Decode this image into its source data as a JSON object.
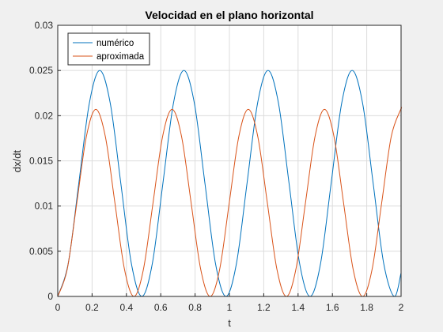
{
  "chart_data": {
    "type": "line",
    "title": "Velocidad en el plano horizontal",
    "xlabel": "t",
    "ylabel": "dx/dt",
    "xlim": [
      0,
      2
    ],
    "ylim": [
      0,
      0.03
    ],
    "xticks": [
      "0",
      "0.2",
      "0.4",
      "0.6",
      "0.8",
      "1",
      "1.2",
      "1.4",
      "1.6",
      "1.8",
      "2"
    ],
    "yticks": [
      "0",
      "0.005",
      "0.01",
      "0.015",
      "0.02",
      "0.025",
      "0.03"
    ],
    "grid": true,
    "legend_position": "top-left",
    "series": [
      {
        "name": "numérico",
        "color": "#0072bd",
        "x": [
          0,
          0.0612,
          0.1225,
          0.1837,
          0.245,
          0.3062,
          0.3675,
          0.4287,
          0.49,
          0.5512,
          0.6125,
          0.6737,
          0.735,
          0.7962,
          0.8575,
          0.9187,
          0.98,
          1.0412,
          1.1025,
          1.1637,
          1.225,
          1.2862,
          1.3475,
          1.4087,
          1.47,
          1.5312,
          1.5925,
          1.6537,
          1.715,
          1.7762,
          1.8375,
          1.8987,
          1.96,
          2.0
        ],
        "y": [
          0,
          0.00366,
          0.0125,
          0.02134,
          0.025,
          0.02134,
          0.0125,
          0.00366,
          0,
          0.00366,
          0.0125,
          0.02134,
          0.025,
          0.02134,
          0.0125,
          0.00366,
          0,
          0.00366,
          0.0125,
          0.02134,
          0.025,
          0.02134,
          0.0125,
          0.00366,
          0,
          0.00366,
          0.0125,
          0.02134,
          0.025,
          0.02134,
          0.0125,
          0.00366,
          0,
          0.0026
        ]
      },
      {
        "name": "aproximada",
        "color": "#d95319",
        "x": [
          0,
          0.0555,
          0.111,
          0.1665,
          0.222,
          0.2775,
          0.333,
          0.3885,
          0.444,
          0.4995,
          0.555,
          0.6105,
          0.666,
          0.7215,
          0.777,
          0.8325,
          0.888,
          0.9435,
          0.999,
          1.0545,
          1.11,
          1.1655,
          1.221,
          1.2765,
          1.332,
          1.3875,
          1.443,
          1.4985,
          1.554,
          1.6095,
          1.665,
          1.7205,
          1.776,
          1.8315,
          1.887,
          1.9425,
          1.998,
          2.0
        ],
        "y": [
          0,
          0.00303,
          0.01035,
          0.01767,
          0.0207,
          0.01767,
          0.01035,
          0.00303,
          0,
          0.00303,
          0.01035,
          0.01767,
          0.0207,
          0.01767,
          0.01035,
          0.00303,
          0,
          0.00303,
          0.01035,
          0.01767,
          0.0207,
          0.01767,
          0.01035,
          0.00303,
          0,
          0.00303,
          0.01035,
          0.01767,
          0.0207,
          0.01767,
          0.01035,
          0.00303,
          0,
          0.00303,
          0.01035,
          0.01767,
          0.0207,
          0.0207
        ]
      }
    ]
  }
}
